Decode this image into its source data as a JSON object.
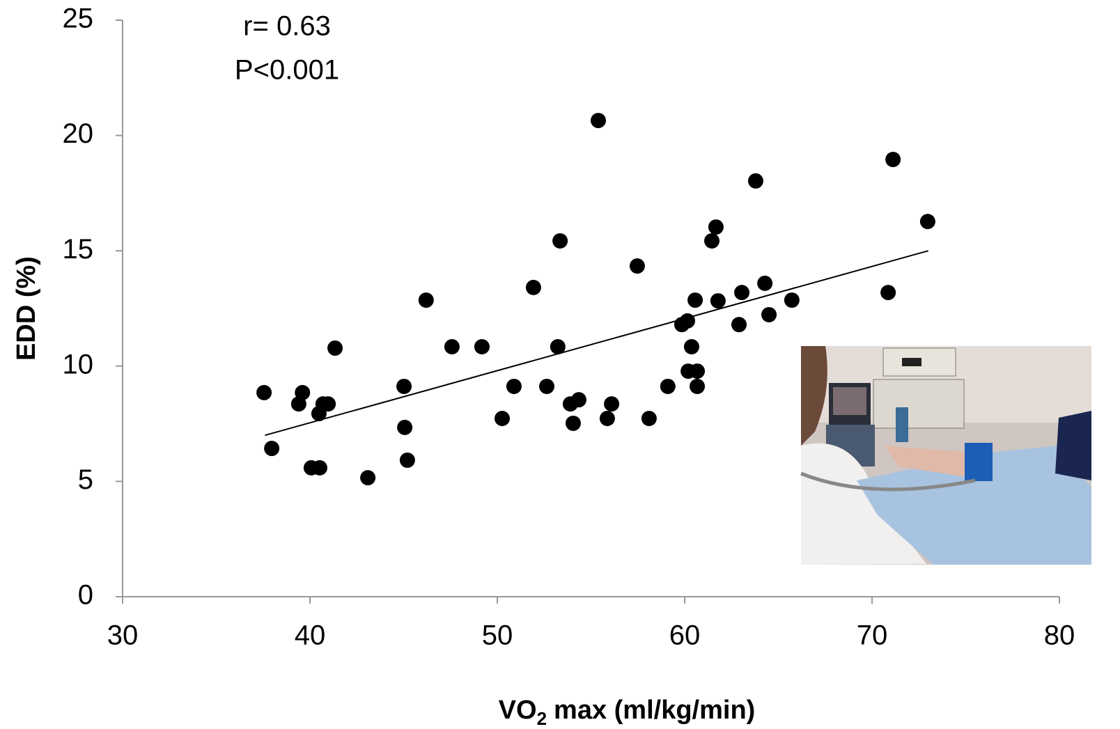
{
  "chart_data": {
    "type": "scatter",
    "x_label": {
      "main": "VO",
      "subscript": "2",
      "rest": "max (ml/kg/min)"
    },
    "y_label": "EDD (%)",
    "annotations": [
      "r= 0.63",
      "P<0.001"
    ],
    "xlim": [
      30,
      80
    ],
    "xticks": [
      30,
      40,
      50,
      60,
      70,
      80
    ],
    "ylim": [
      0,
      25
    ],
    "yticks": [
      0,
      5,
      10,
      15,
      20,
      25
    ],
    "grid": false,
    "color": "#000000",
    "x": [
      37.55,
      37.96,
      39.4,
      39.6,
      40.07,
      40.52,
      40.48,
      40.7,
      40.97,
      41.34,
      43.09,
      45.02,
      45.06,
      45.2,
      46.2,
      47.58,
      49.18,
      50.26,
      50.89,
      51.93,
      52.64,
      53.23,
      53.35,
      53.9,
      54.35,
      54.05,
      55.39,
      55.87,
      56.1,
      57.47,
      58.1,
      59.1,
      59.85,
      60.15,
      60.19,
      60.37,
      60.56,
      60.67,
      60.67,
      61.45,
      61.67,
      61.78,
      62.9,
      63.05,
      63.79,
      64.28,
      64.5,
      65.72,
      70.86,
      71.12,
      72.97
    ],
    "values": [
      8.85,
      6.43,
      8.36,
      8.85,
      5.59,
      5.59,
      7.94,
      8.36,
      8.36,
      10.78,
      5.16,
      9.12,
      7.34,
      5.92,
      12.86,
      10.84,
      10.84,
      7.73,
      9.12,
      13.41,
      9.12,
      10.84,
      15.43,
      8.36,
      8.54,
      7.52,
      20.65,
      7.73,
      8.36,
      14.34,
      7.73,
      9.12,
      11.8,
      11.96,
      9.78,
      10.84,
      12.86,
      9.78,
      9.12,
      15.43,
      16.03,
      12.83,
      11.8,
      13.19,
      18.03,
      13.59,
      12.23,
      12.86,
      13.19,
      18.96,
      16.27
    ],
    "trendline": {
      "x": [
        37.6,
        73.0
      ],
      "y": [
        7.0,
        15.0
      ],
      "color": "#000000"
    }
  }
}
